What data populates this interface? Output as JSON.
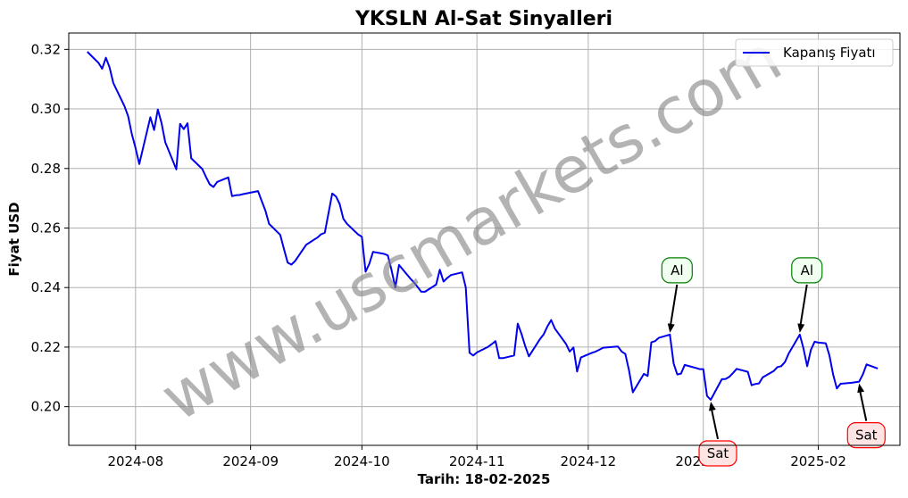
{
  "chart_data": {
    "type": "line",
    "title": "YKSLN Al-Sat Sinyalleri",
    "xlabel": "Tarih: 18-02-2025",
    "ylabel": "Fiyat USD",
    "xlim": [
      "2024-07-14",
      "2025-02-23"
    ],
    "ylim": [
      0.187,
      0.3255
    ],
    "x_ticks": [
      "2024-08",
      "2024-09",
      "2024-10",
      "2024-11",
      "2024-12",
      "2025-01",
      "2025-02"
    ],
    "y_ticks": [
      0.2,
      0.22,
      0.24,
      0.26,
      0.28,
      0.3,
      0.32
    ],
    "y_tick_labels": [
      "0.20",
      "0.22",
      "0.24",
      "0.26",
      "0.28",
      "0.30",
      "0.32"
    ],
    "grid": true,
    "legend_position": "top-right",
    "series": [
      {
        "name": "Kapanış Fiyatı",
        "color": "#0000ee",
        "points": [
          [
            "2024-07-19",
            0.3192
          ],
          [
            "2024-07-22",
            0.3155
          ],
          [
            "2024-07-23",
            0.3135
          ],
          [
            "2024-07-24",
            0.3172
          ],
          [
            "2024-07-25",
            0.314
          ],
          [
            "2024-07-26",
            0.3087
          ],
          [
            "2024-07-29",
            0.301
          ],
          [
            "2024-07-30",
            0.2976
          ],
          [
            "2024-07-31",
            0.2915
          ],
          [
            "2024-08-01",
            0.2869
          ],
          [
            "2024-08-02",
            0.2815
          ],
          [
            "2024-08-05",
            0.2972
          ],
          [
            "2024-08-06",
            0.2929
          ],
          [
            "2024-08-07",
            0.2998
          ],
          [
            "2024-08-08",
            0.2953
          ],
          [
            "2024-08-09",
            0.2888
          ],
          [
            "2024-08-12",
            0.2797
          ],
          [
            "2024-08-13",
            0.295
          ],
          [
            "2024-08-14",
            0.2932
          ],
          [
            "2024-08-15",
            0.2952
          ],
          [
            "2024-08-16",
            0.2834
          ],
          [
            "2024-08-19",
            0.2798
          ],
          [
            "2024-08-20",
            0.2771
          ],
          [
            "2024-08-21",
            0.2747
          ],
          [
            "2024-08-22",
            0.2738
          ],
          [
            "2024-08-23",
            0.2755
          ],
          [
            "2024-08-26",
            0.277
          ],
          [
            "2024-08-27",
            0.2707
          ],
          [
            "2024-08-28",
            0.271
          ],
          [
            "2024-08-29",
            0.2711
          ],
          [
            "2024-08-30",
            0.2714
          ],
          [
            "2024-09-03",
            0.2724
          ],
          [
            "2024-09-04",
            0.2691
          ],
          [
            "2024-09-05",
            0.2658
          ],
          [
            "2024-09-06",
            0.2614
          ],
          [
            "2024-09-09",
            0.2577
          ],
          [
            "2024-09-10",
            0.2529
          ],
          [
            "2024-09-11",
            0.2484
          ],
          [
            "2024-09-12",
            0.2477
          ],
          [
            "2024-09-13",
            0.2489
          ],
          [
            "2024-09-16",
            0.2544
          ],
          [
            "2024-09-17",
            0.2552
          ],
          [
            "2024-09-18",
            0.256
          ],
          [
            "2024-09-19",
            0.2568
          ],
          [
            "2024-09-20",
            0.2579
          ],
          [
            "2024-09-21",
            0.2584
          ],
          [
            "2024-09-23",
            0.2716
          ],
          [
            "2024-09-24",
            0.2706
          ],
          [
            "2024-09-25",
            0.2681
          ],
          [
            "2024-09-26",
            0.2631
          ],
          [
            "2024-09-27",
            0.2614
          ],
          [
            "2024-09-30",
            0.2578
          ],
          [
            "2024-10-01",
            0.2571
          ],
          [
            "2024-10-02",
            0.2453
          ],
          [
            "2024-10-03",
            0.248
          ],
          [
            "2024-10-04",
            0.252
          ],
          [
            "2024-10-07",
            0.2513
          ],
          [
            "2024-10-08",
            0.2508
          ],
          [
            "2024-10-09",
            0.2458
          ],
          [
            "2024-10-10",
            0.24
          ],
          [
            "2024-10-11",
            0.2476
          ],
          [
            "2024-10-14",
            0.2431
          ],
          [
            "2024-10-15",
            0.2418
          ],
          [
            "2024-10-16",
            0.2402
          ],
          [
            "2024-10-17",
            0.2386
          ],
          [
            "2024-10-18",
            0.2386
          ],
          [
            "2024-10-21",
            0.241
          ],
          [
            "2024-10-22",
            0.246
          ],
          [
            "2024-10-23",
            0.242
          ],
          [
            "2024-10-24",
            0.2432
          ],
          [
            "2024-10-25",
            0.2442
          ],
          [
            "2024-10-28",
            0.2451
          ],
          [
            "2024-10-29",
            0.24
          ],
          [
            "2024-10-30",
            0.2181
          ],
          [
            "2024-10-31",
            0.2172
          ],
          [
            "2024-11-01",
            0.2182
          ],
          [
            "2024-11-04",
            0.2201
          ],
          [
            "2024-11-05",
            0.221
          ],
          [
            "2024-11-06",
            0.222
          ],
          [
            "2024-11-07",
            0.2163
          ],
          [
            "2024-11-08",
            0.2163
          ],
          [
            "2024-11-11",
            0.2172
          ],
          [
            "2024-11-12",
            0.2279
          ],
          [
            "2024-11-13",
            0.2244
          ],
          [
            "2024-11-14",
            0.2204
          ],
          [
            "2024-11-15",
            0.2169
          ],
          [
            "2024-11-18",
            0.2227
          ],
          [
            "2024-11-19",
            0.2243
          ],
          [
            "2024-11-20",
            0.227
          ],
          [
            "2024-11-21",
            0.2291
          ],
          [
            "2024-11-22",
            0.2262
          ],
          [
            "2024-11-25",
            0.2211
          ],
          [
            "2024-11-26",
            0.2185
          ],
          [
            "2024-11-27",
            0.2199
          ],
          [
            "2024-11-28",
            0.2118
          ],
          [
            "2024-11-29",
            0.2165
          ],
          [
            "2024-12-02",
            0.2181
          ],
          [
            "2024-12-03",
            0.2185
          ],
          [
            "2024-12-04",
            0.2191
          ],
          [
            "2024-12-05",
            0.2198
          ],
          [
            "2024-12-06",
            0.2199
          ],
          [
            "2024-12-09",
            0.2202
          ],
          [
            "2024-12-10",
            0.2185
          ],
          [
            "2024-12-11",
            0.2177
          ],
          [
            "2024-12-12",
            0.2121
          ],
          [
            "2024-12-13",
            0.2048
          ],
          [
            "2024-12-16",
            0.211
          ],
          [
            "2024-12-17",
            0.2103
          ],
          [
            "2024-12-18",
            0.2216
          ],
          [
            "2024-12-19",
            0.222
          ],
          [
            "2024-12-20",
            0.2231
          ],
          [
            "2024-12-23",
            0.2242
          ],
          [
            "2024-12-24",
            0.2145
          ],
          [
            "2024-12-25",
            0.2108
          ],
          [
            "2024-12-26",
            0.2111
          ],
          [
            "2024-12-27",
            0.214
          ],
          [
            "2024-12-30",
            0.213
          ],
          [
            "2024-12-31",
            0.2126
          ],
          [
            "2025-01-01",
            0.2126
          ],
          [
            "2025-01-02",
            0.2036
          ],
          [
            "2025-01-03",
            0.2023
          ],
          [
            "2025-01-06",
            0.2092
          ],
          [
            "2025-01-07",
            0.2093
          ],
          [
            "2025-01-08",
            0.21
          ],
          [
            "2025-01-09",
            0.2113
          ],
          [
            "2025-01-10",
            0.2127
          ],
          [
            "2025-01-13",
            0.2117
          ],
          [
            "2025-01-14",
            0.2072
          ],
          [
            "2025-01-15",
            0.2076
          ],
          [
            "2025-01-16",
            0.2078
          ],
          [
            "2025-01-17",
            0.2098
          ],
          [
            "2025-01-20",
            0.212
          ],
          [
            "2025-01-21",
            0.2133
          ],
          [
            "2025-01-22",
            0.2136
          ],
          [
            "2025-01-23",
            0.215
          ],
          [
            "2025-01-24",
            0.2178
          ],
          [
            "2025-01-27",
            0.2242
          ],
          [
            "2025-01-28",
            0.2196
          ],
          [
            "2025-01-29",
            0.2136
          ],
          [
            "2025-01-30",
            0.2191
          ],
          [
            "2025-01-31",
            0.2218
          ],
          [
            "2025-02-01",
            0.2215
          ],
          [
            "2025-02-03",
            0.2213
          ],
          [
            "2025-02-04",
            0.2172
          ],
          [
            "2025-02-05",
            0.2107
          ],
          [
            "2025-02-06",
            0.2061
          ],
          [
            "2025-02-07",
            0.2077
          ],
          [
            "2025-02-10",
            0.208
          ],
          [
            "2025-02-11",
            0.2082
          ],
          [
            "2025-02-12",
            0.2084
          ],
          [
            "2025-02-13",
            0.2108
          ],
          [
            "2025-02-14",
            0.2142
          ],
          [
            "2025-02-17",
            0.2128
          ]
        ]
      }
    ],
    "annotations": [
      {
        "label": "Al",
        "date": "2024-12-23",
        "value": 0.2242,
        "type": "buy",
        "text_color": "#000000",
        "box_edge": "#008000",
        "box_face": "#f0fff0"
      },
      {
        "label": "Sat",
        "date": "2025-01-03",
        "value": 0.2023,
        "type": "sell",
        "text_color": "#000000",
        "box_edge": "#ff0000",
        "box_face": "#ffe4e4"
      },
      {
        "label": "Al",
        "date": "2025-01-27",
        "value": 0.2242,
        "type": "buy",
        "text_color": "#000000",
        "box_edge": "#008000",
        "box_face": "#f0fff0"
      },
      {
        "label": "Sat",
        "date": "2025-02-12",
        "value": 0.2084,
        "type": "sell",
        "text_color": "#000000",
        "box_edge": "#ff0000",
        "box_face": "#ffe4e4"
      }
    ]
  },
  "watermark": "www.uscmarkets.com",
  "colors": {
    "grid": "#b0b0b0",
    "axis": "#000000",
    "watermark": "#808080"
  }
}
